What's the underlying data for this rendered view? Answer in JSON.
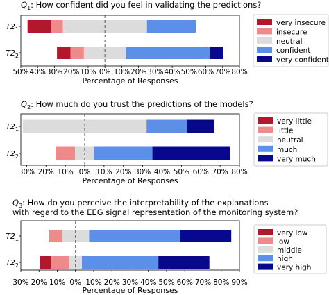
{
  "colors": {
    "dark_red": "#b2182b",
    "light_red": "#ef8a8a",
    "neutral": "#dcdcdc",
    "light_blue": "#5b8fe8",
    "dark_blue": "#08088c"
  },
  "chart_data": [
    {
      "type": "bar",
      "orientation": "horizontal-diverging-stacked",
      "title_prefix": "Q",
      "title_sub": "1",
      "title_text": ": How confident did you feel in validating the predictions?",
      "xlabel": "Percentage of Responses",
      "categories_main": [
        "T2",
        "T2"
      ],
      "categories_sub": [
        "1",
        "2"
      ],
      "xlim": [
        -50,
        80
      ],
      "xticks": [
        -50,
        -40,
        -30,
        -20,
        -10,
        0,
        10,
        20,
        30,
        40,
        50,
        60,
        70,
        80
      ],
      "xtick_labels": [
        "50%",
        "40%",
        "30%",
        "20%",
        "10%",
        "0%",
        "10%",
        "20%",
        "30%",
        "40%",
        "50%",
        "60%",
        "70%",
        "80%"
      ],
      "legend_position": "right",
      "series": [
        {
          "name": "very insecure",
          "color": "#b2182b",
          "values": [
            14,
            8
          ]
        },
        {
          "name": "insecure",
          "color": "#ef8a8a",
          "values": [
            7,
            8
          ]
        },
        {
          "name": "neutral",
          "color": "#dcdcdc",
          "values": [
            50,
            25
          ]
        },
        {
          "name": "confident",
          "color": "#5b8fe8",
          "values": [
            29,
            50
          ]
        },
        {
          "name": "very confident",
          "color": "#08088c",
          "values": [
            0,
            8
          ]
        }
      ]
    },
    {
      "type": "bar",
      "orientation": "horizontal-diverging-stacked",
      "title_prefix": "Q",
      "title_sub": "2",
      "title_text": ": How much do you trust the predictions of the models?",
      "xlabel": "Percentage of Responses",
      "categories_main": [
        "T2",
        "T2"
      ],
      "categories_sub": [
        "1",
        "2"
      ],
      "xlim": [
        -33,
        80
      ],
      "xticks": [
        -30,
        -20,
        -10,
        0,
        10,
        20,
        30,
        40,
        50,
        60,
        70,
        80
      ],
      "xtick_labels": [
        "30%",
        "20%",
        "10%",
        "0%",
        "10%",
        "20%",
        "30%",
        "40%",
        "50%",
        "60%",
        "70%",
        "80%"
      ],
      "legend_position": "right",
      "series": [
        {
          "name": "very little",
          "color": "#b2182b",
          "values": [
            0,
            0
          ]
        },
        {
          "name": "little",
          "color": "#ef8a8a",
          "values": [
            0,
            10
          ]
        },
        {
          "name": "neutral",
          "color": "#dcdcdc",
          "values": [
            64,
            10
          ]
        },
        {
          "name": "much",
          "color": "#5b8fe8",
          "values": [
            21,
            30
          ]
        },
        {
          "name": "very much",
          "color": "#08088c",
          "values": [
            14,
            40
          ]
        }
      ]
    },
    {
      "type": "bar",
      "orientation": "horizontal-diverging-stacked",
      "title_prefix": "Q",
      "title_sub": "3",
      "title_text": ": How do you perceive the interpretability of the explanations",
      "title_line2": "with regard to the EEG signal representation of the monitoring system?",
      "xlabel": "Percentage of Responses",
      "categories_main": [
        "T2",
        "T2"
      ],
      "categories_sub": [
        "1",
        "2"
      ],
      "xlim": [
        -30,
        90
      ],
      "xticks": [
        -30,
        -20,
        -10,
        0,
        10,
        20,
        30,
        40,
        50,
        60,
        70,
        80,
        90
      ],
      "xtick_labels": [
        "30%",
        "20%",
        "10%",
        "0%",
        "10%",
        "20%",
        "30%",
        "40%",
        "50%",
        "60%",
        "70%",
        "80%",
        "90%"
      ],
      "legend_position": "right",
      "series": [
        {
          "name": "very low",
          "color": "#b2182b",
          "values": [
            0,
            6
          ]
        },
        {
          "name": "low",
          "color": "#ef8a8a",
          "values": [
            7,
            10
          ]
        },
        {
          "name": "middle",
          "color": "#dcdcdc",
          "values": [
            15,
            7
          ]
        },
        {
          "name": "high",
          "color": "#5b8fe8",
          "values": [
            50,
            42
          ]
        },
        {
          "name": "very high",
          "color": "#08088c",
          "values": [
            28,
            28
          ]
        }
      ]
    }
  ]
}
